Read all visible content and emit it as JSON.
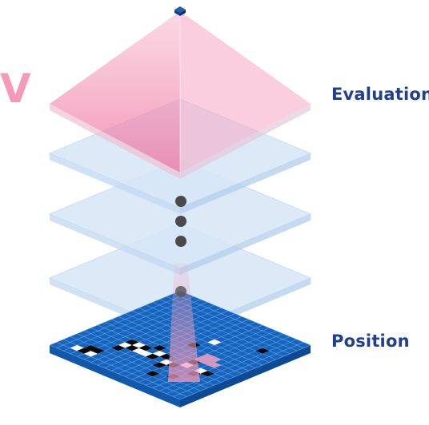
{
  "diagram": {
    "value_symbol": "V",
    "top_label": "Evaluation",
    "bottom_label": "Position"
  },
  "board": {
    "size": 19,
    "black_stones": [
      [
        3,
        2
      ],
      [
        4,
        2
      ],
      [
        3,
        1
      ],
      [
        5,
        4
      ],
      [
        5,
        6
      ],
      [
        6,
        5
      ],
      [
        7,
        6
      ],
      [
        8,
        7
      ],
      [
        9,
        5
      ],
      [
        10,
        6
      ],
      [
        11,
        4
      ],
      [
        12,
        5
      ],
      [
        13,
        7
      ],
      [
        14,
        3
      ],
      [
        15,
        5
      ],
      [
        16,
        6
      ],
      [
        10,
        10
      ],
      [
        16,
        14
      ],
      [
        12,
        2
      ]
    ],
    "white_stones": [
      [
        2,
        1
      ],
      [
        4,
        1
      ],
      [
        5,
        5
      ],
      [
        6,
        6
      ],
      [
        7,
        5
      ],
      [
        8,
        5
      ],
      [
        9,
        6
      ],
      [
        11,
        5
      ],
      [
        13,
        6
      ],
      [
        15,
        6
      ],
      [
        11,
        12
      ]
    ],
    "highlighted": [
      [
        13,
        8
      ],
      [
        14,
        8
      ],
      [
        14,
        9
      ],
      [
        13,
        9
      ],
      [
        15,
        8
      ]
    ]
  },
  "colors": {
    "board_fill": "#1565c0",
    "board_edge": "#0d4a96",
    "grid": "#8fb8ea",
    "layer_fill": "#d7e7f7",
    "pyramid": "#f28db0",
    "label": "#1f3f8f",
    "dots": "#4a4a4a",
    "top_cube": "#1f5fb8"
  }
}
